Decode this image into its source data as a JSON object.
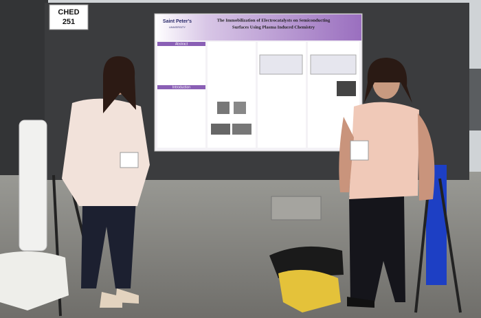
{
  "sign": {
    "line1": "CHED",
    "line2": "251"
  },
  "poster": {
    "logo": "Saint Peter's",
    "logo_sub": "UNIVERSITY",
    "title_line1": "The Immobilization of Electrocatalysts on Semiconducting",
    "title_line2": "Surfaces Using Plasma Induced Chemistry",
    "sections": [
      "Abstract",
      "Introduction"
    ]
  }
}
